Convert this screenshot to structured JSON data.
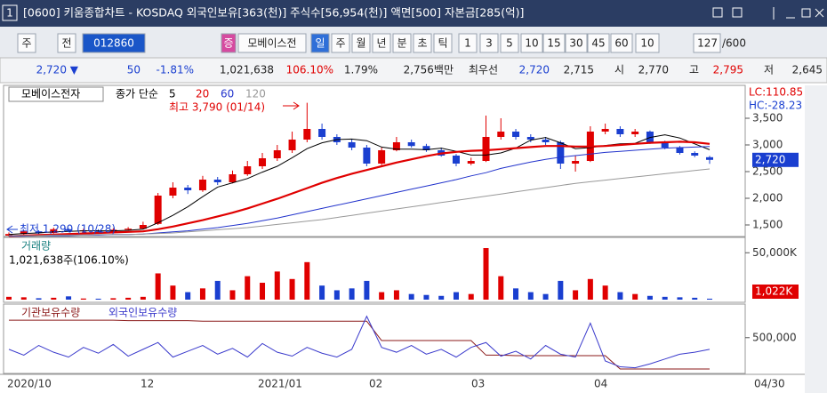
{
  "title_bar": {
    "window_no": "1",
    "text": "[0600] 키움종합차트 - KOSDAQ 외국인보유[363(천)] 주식수[56,954(천)] 액면[500] 자본금[285(억)]"
  },
  "toolbar": {
    "items": [
      "주",
      "전",
      "012860",
      "증",
      "모베이스전",
      "일",
      "주",
      "월",
      "년",
      "분",
      "초",
      "틱",
      "1",
      "3",
      "5",
      "10",
      "15",
      "30",
      "45",
      "60",
      "10",
      "127",
      "/600"
    ]
  },
  "quote": {
    "items": [
      "2,720 ▼",
      "50",
      "-1.81%",
      "1,021,638",
      "106.10%",
      "1.79%",
      "2,756백만",
      "최우선",
      "2,720",
      "2,715",
      "시",
      "2,770",
      "고",
      "2,795",
      "저",
      "2,645"
    ]
  },
  "chart": {
    "price_pane": {
      "legend_name": "모베이스전자",
      "legend_type": "종가 단순",
      "ma_periods": [
        "5",
        "20",
        "60",
        "120"
      ],
      "lc": "LC:110.85",
      "hc": "HC:-28.23",
      "current": "2,720",
      "high_note": "최고 3,790 (01/14)",
      "low_note": "최저 1,290 (10/28)",
      "ylim": [
        1300,
        3800
      ],
      "yticks": [
        {
          "value": 3500,
          "label": "3,500"
        },
        {
          "value": 3000,
          "label": "3,000"
        },
        {
          "value": 2500,
          "label": "2,500"
        },
        {
          "value": 2000,
          "label": "2,000"
        },
        {
          "value": 1500,
          "label": "1,500"
        }
      ],
      "candles": [
        [
          1300,
          1360,
          1290,
          1330
        ],
        [
          1330,
          1400,
          1310,
          1380
        ],
        [
          1380,
          1400,
          1330,
          1350
        ],
        [
          1350,
          1450,
          1340,
          1420
        ],
        [
          1420,
          1440,
          1370,
          1390
        ],
        [
          1390,
          1430,
          1370,
          1400
        ],
        [
          1400,
          1420,
          1350,
          1370
        ],
        [
          1370,
          1440,
          1360,
          1410
        ],
        [
          1410,
          1460,
          1400,
          1430
        ],
        [
          1430,
          1560,
          1420,
          1500
        ],
        [
          1520,
          2100,
          1500,
          2050
        ],
        [
          2050,
          2300,
          2000,
          2200
        ],
        [
          2200,
          2250,
          2080,
          2150
        ],
        [
          2150,
          2420,
          2120,
          2350
        ],
        [
          2350,
          2400,
          2250,
          2300
        ],
        [
          2300,
          2520,
          2280,
          2450
        ],
        [
          2450,
          2700,
          2420,
          2600
        ],
        [
          2600,
          2850,
          2550,
          2750
        ],
        [
          2750,
          3000,
          2700,
          2900
        ],
        [
          2900,
          3250,
          2850,
          3100
        ],
        [
          3100,
          3790,
          3050,
          3300
        ],
        [
          3300,
          3400,
          3100,
          3150
        ],
        [
          3150,
          3200,
          3000,
          3050
        ],
        [
          3050,
          3100,
          2900,
          2950
        ],
        [
          2950,
          3000,
          2600,
          2650
        ],
        [
          2650,
          2950,
          2620,
          2900
        ],
        [
          2900,
          3150,
          2880,
          3050
        ],
        [
          3050,
          3100,
          2950,
          2980
        ],
        [
          2980,
          3020,
          2870,
          2900
        ],
        [
          2900,
          2950,
          2780,
          2800
        ],
        [
          2800,
          2830,
          2600,
          2650
        ],
        [
          2650,
          2760,
          2620,
          2700
        ],
        [
          2700,
          3550,
          2680,
          3150
        ],
        [
          3150,
          3500,
          3100,
          3250
        ],
        [
          3250,
          3300,
          3100,
          3150
        ],
        [
          3150,
          3200,
          3050,
          3100
        ],
        [
          3100,
          3150,
          3000,
          3050
        ],
        [
          3050,
          3080,
          2550,
          2650
        ],
        [
          2650,
          2800,
          2500,
          2700
        ],
        [
          2700,
          3350,
          2680,
          3250
        ],
        [
          3250,
          3400,
          3200,
          3300
        ],
        [
          3300,
          3350,
          3150,
          3200
        ],
        [
          3200,
          3300,
          3150,
          3250
        ],
        [
          3250,
          3270,
          3020,
          3050
        ],
        [
          3050,
          3080,
          2920,
          2950
        ],
        [
          2950,
          2980,
          2820,
          2850
        ],
        [
          2850,
          2880,
          2770,
          2800
        ],
        [
          2770,
          2795,
          2645,
          2720
        ]
      ],
      "ma": [
        {
          "color": "#000000",
          "values": [
            1320,
            1340,
            1350,
            1370,
            1380,
            1390,
            1390,
            1390,
            1400,
            1420,
            1540,
            1680,
            1840,
            2030,
            2210,
            2290,
            2370,
            2490,
            2600,
            2760,
            2930,
            3040,
            3100,
            3110,
            3080,
            2960,
            2920,
            2920,
            2910,
            2940,
            2880,
            2810,
            2810,
            2850,
            2940,
            3090,
            3140,
            3040,
            2930,
            2950,
            2990,
            3020,
            3030,
            3140,
            3190,
            3130,
            3020,
            2910
          ]
        },
        {
          "color": "#e00000",
          "values": [
            1290,
            1300,
            1310,
            1320,
            1330,
            1340,
            1350,
            1360,
            1370,
            1380,
            1420,
            1470,
            1530,
            1590,
            1660,
            1730,
            1810,
            1900,
            1990,
            2090,
            2190,
            2290,
            2380,
            2460,
            2530,
            2600,
            2670,
            2730,
            2790,
            2840,
            2870,
            2890,
            2900,
            2920,
            2940,
            2960,
            2980,
            2980,
            2970,
            2970,
            2980,
            3000,
            3020,
            3040,
            3050,
            3060,
            3050,
            3020
          ]
        },
        {
          "color": "#2233cc",
          "values": [
            1290,
            1290,
            1300,
            1300,
            1300,
            1310,
            1310,
            1320,
            1320,
            1330,
            1350,
            1370,
            1390,
            1420,
            1450,
            1490,
            1530,
            1580,
            1630,
            1690,
            1750,
            1810,
            1870,
            1930,
            1990,
            2050,
            2110,
            2170,
            2230,
            2290,
            2350,
            2420,
            2480,
            2560,
            2620,
            2680,
            2730,
            2770,
            2800,
            2830,
            2860,
            2880,
            2900,
            2920,
            2940,
            2950,
            2960,
            2970
          ]
        },
        {
          "color": "#999999",
          "values": [
            1300,
            1300,
            1300,
            1310,
            1310,
            1310,
            1320,
            1320,
            1320,
            1330,
            1340,
            1350,
            1370,
            1390,
            1410,
            1430,
            1450,
            1480,
            1510,
            1540,
            1570,
            1600,
            1640,
            1680,
            1720,
            1760,
            1800,
            1840,
            1880,
            1920,
            1960,
            2000,
            2040,
            2080,
            2120,
            2160,
            2200,
            2240,
            2280,
            2310,
            2340,
            2370,
            2400,
            2430,
            2460,
            2490,
            2520,
            2550
          ]
        }
      ]
    },
    "volume_pane": {
      "title": "거래량",
      "info": "1,021,638주(106.10%)",
      "ylim": [
        0,
        55000
      ],
      "yticks": [
        {
          "value": 50000,
          "label": "50,000K"
        }
      ],
      "values": [
        3000,
        2500,
        1500,
        2000,
        3500,
        1200,
        1000,
        1500,
        2000,
        3000,
        28000,
        15000,
        8000,
        12000,
        20000,
        10000,
        25000,
        18000,
        30000,
        22000,
        40000,
        15000,
        10000,
        12000,
        20000,
        8000,
        10000,
        6000,
        5000,
        4000,
        8000,
        6000,
        55000,
        25000,
        12000,
        8000,
        6000,
        20000,
        10000,
        22000,
        15000,
        8000,
        6000,
        4000,
        3000,
        2500,
        2000,
        1022
      ],
      "value_labels": {
        "47": "1,022K"
      }
    },
    "holdings_pane": {
      "names": [
        "기관보유수량",
        "외국인보유수량"
      ],
      "ylim": [
        150000,
        800000
      ],
      "yticks": [
        {
          "value": 500000,
          "label": "500,000"
        }
      ],
      "series": [
        {
          "color": "#8b1a1a",
          "values": [
            680000,
            680000,
            680000,
            680000,
            680000,
            680000,
            680000,
            680000,
            675000,
            675000,
            675000,
            675000,
            675000,
            670000,
            670000,
            670000,
            670000,
            670000,
            670000,
            670000,
            670000,
            670000,
            670000,
            670000,
            670000,
            470000,
            470000,
            470000,
            470000,
            470000,
            470000,
            470000,
            320000,
            320000,
            315000,
            315000,
            315000,
            315000,
            315000,
            315000,
            315000,
            177000,
            177000,
            177000,
            177000,
            177000,
            177000,
            177000
          ]
        },
        {
          "color": "#3a3acc",
          "values": [
            380000,
            320000,
            420000,
            350000,
            300000,
            400000,
            340000,
            430000,
            310000,
            380000,
            450000,
            300000,
            360000,
            420000,
            330000,
            390000,
            300000,
            440000,
            350000,
            310000,
            400000,
            340000,
            300000,
            380000,
            720000,
            400000,
            350000,
            420000,
            330000,
            380000,
            300000,
            400000,
            450000,
            310000,
            360000,
            280000,
            420000,
            330000,
            300000,
            650000,
            260000,
            200000,
            190000,
            230000,
            280000,
            330000,
            350000,
            380000
          ]
        }
      ]
    },
    "x_labels": [
      "2020/10",
      "12",
      "2021/01",
      "02",
      "03",
      "04",
      "04/30"
    ]
  }
}
